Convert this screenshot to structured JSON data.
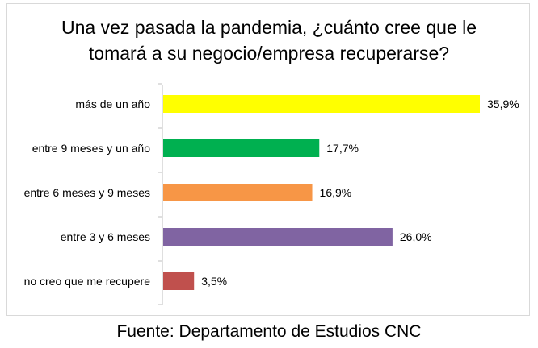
{
  "chart_data": {
    "type": "bar",
    "orientation": "horizontal",
    "title": "Una vez pasada la pandemia, ¿cuánto cree que le tomará a su negocio/empresa recuperarse?",
    "categories": [
      "más de un año",
      "entre 9 meses y un año",
      "entre 6 meses y 9 meses",
      "entre 3 y 6 meses",
      "no creo que me recupere"
    ],
    "values": [
      35.9,
      17.7,
      16.9,
      26.0,
      3.5
    ],
    "value_labels": [
      "35,9%",
      "17,7%",
      "16,9%",
      "26,0%",
      "3,5%"
    ],
    "colors": [
      "#ffff00",
      "#00b050",
      "#f79646",
      "#8064a2",
      "#c0504d"
    ],
    "xlim": [
      0,
      40
    ],
    "grid": false,
    "legend": "none"
  },
  "footer": "Fuente: Departamento de Estudios CNC"
}
